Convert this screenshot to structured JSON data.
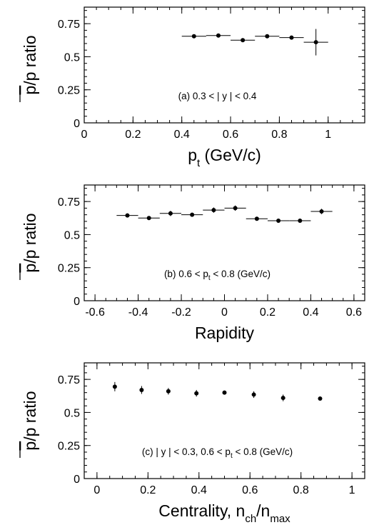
{
  "chart_data": [
    {
      "type": "scatter",
      "panel_label": "(a)",
      "annotation": {
        "pre": "(a) 0.3 < | y | < 0.4",
        "sub": "",
        "post": ""
      },
      "ylabel": "p/p ratio",
      "xlabel": {
        "main": "p",
        "sub": "t",
        "post": " (GeV/c)"
      },
      "xlim": [
        0,
        1.15
      ],
      "ylim": [
        0,
        0.875
      ],
      "xticks": [
        0,
        0.2,
        0.4,
        0.6,
        0.8,
        1
      ],
      "xtick_labels": [
        "0",
        "0.2",
        "0.4",
        "0.6",
        "0.8",
        "1"
      ],
      "yticks": [
        0,
        0.25,
        0.5,
        0.75
      ],
      "ytick_labels": [
        "0",
        "0.25",
        "0.5",
        "0.75"
      ],
      "points": [
        {
          "x": 0.45,
          "y": 0.655,
          "xerr": 0.05,
          "yerr": 0.0
        },
        {
          "x": 0.55,
          "y": 0.66,
          "xerr": 0.05,
          "yerr": 0.0
        },
        {
          "x": 0.65,
          "y": 0.625,
          "xerr": 0.05,
          "yerr": 0.01
        },
        {
          "x": 0.75,
          "y": 0.655,
          "xerr": 0.05,
          "yerr": 0.0
        },
        {
          "x": 0.85,
          "y": 0.645,
          "xerr": 0.05,
          "yerr": 0.0
        },
        {
          "x": 0.95,
          "y": 0.61,
          "xerr": 0.05,
          "yerr": 0.1
        }
      ]
    },
    {
      "type": "scatter",
      "panel_label": "(b)",
      "annotation": {
        "pre": "(b) 0.6 < p",
        "sub": "t",
        "post": " < 0.8 (GeV/c)"
      },
      "ylabel": "p/p ratio",
      "xlabel": {
        "main": "Rapidity",
        "sub": "",
        "post": ""
      },
      "xlim": [
        -0.65,
        0.65
      ],
      "ylim": [
        0,
        0.875
      ],
      "xticks": [
        -0.6,
        -0.4,
        -0.2,
        0,
        0.2,
        0.4,
        0.6
      ],
      "xtick_labels": [
        "-0.6",
        "-0.4",
        "-0.2",
        "0",
        "0.2",
        "0.4",
        "0.6"
      ],
      "yticks": [
        0,
        0.25,
        0.5,
        0.75
      ],
      "ytick_labels": [
        "0",
        "0.25",
        "0.5",
        "0.75"
      ],
      "points": [
        {
          "x": -0.45,
          "y": 0.645,
          "xerr": 0.05,
          "yerr": 0.015
        },
        {
          "x": -0.35,
          "y": 0.625,
          "xerr": 0.05,
          "yerr": 0.015
        },
        {
          "x": -0.25,
          "y": 0.66,
          "xerr": 0.05,
          "yerr": 0.02
        },
        {
          "x": -0.15,
          "y": 0.65,
          "xerr": 0.05,
          "yerr": 0.015
        },
        {
          "x": -0.05,
          "y": 0.685,
          "xerr": 0.05,
          "yerr": 0.02
        },
        {
          "x": 0.05,
          "y": 0.7,
          "xerr": 0.05,
          "yerr": 0.02
        },
        {
          "x": 0.15,
          "y": 0.62,
          "xerr": 0.05,
          "yerr": 0.015
        },
        {
          "x": 0.25,
          "y": 0.605,
          "xerr": 0.05,
          "yerr": 0.015
        },
        {
          "x": 0.35,
          "y": 0.605,
          "xerr": 0.05,
          "yerr": 0.015
        },
        {
          "x": 0.45,
          "y": 0.675,
          "xerr": 0.05,
          "yerr": 0.02
        }
      ]
    },
    {
      "type": "scatter",
      "panel_label": "(c)",
      "annotation": {
        "pre": "(c) | y | < 0.3,  0.6 < p",
        "sub": "t",
        "post": " < 0.8 (GeV/c)"
      },
      "ylabel": "p/p ratio",
      "xlabel": {
        "main": "Centrality, n",
        "sub": "ch",
        "post": "/n",
        "sub2": "max"
      },
      "xlim": [
        -0.05,
        1.05
      ],
      "ylim": [
        0,
        0.875
      ],
      "xticks": [
        0,
        0.2,
        0.4,
        0.6,
        0.8,
        1
      ],
      "xtick_labels": [
        "0",
        "0.2",
        "0.4",
        "0.6",
        "0.8",
        "1"
      ],
      "yticks": [
        0,
        0.25,
        0.5,
        0.75
      ],
      "ytick_labels": [
        "0",
        "0.25",
        "0.5",
        "0.75"
      ],
      "points": [
        {
          "x": 0.07,
          "y": 0.695,
          "xerr": 0,
          "yerr": 0.035
        },
        {
          "x": 0.175,
          "y": 0.67,
          "xerr": 0,
          "yerr": 0.03
        },
        {
          "x": 0.28,
          "y": 0.66,
          "xerr": 0,
          "yerr": 0.025
        },
        {
          "x": 0.39,
          "y": 0.645,
          "xerr": 0,
          "yerr": 0.025
        },
        {
          "x": 0.5,
          "y": 0.65,
          "xerr": 0,
          "yerr": 0.01
        },
        {
          "x": 0.615,
          "y": 0.635,
          "xerr": 0,
          "yerr": 0.025
        },
        {
          "x": 0.73,
          "y": 0.61,
          "xerr": 0,
          "yerr": 0.025
        },
        {
          "x": 0.875,
          "y": 0.605,
          "xerr": 0,
          "yerr": 0.01
        }
      ]
    }
  ]
}
